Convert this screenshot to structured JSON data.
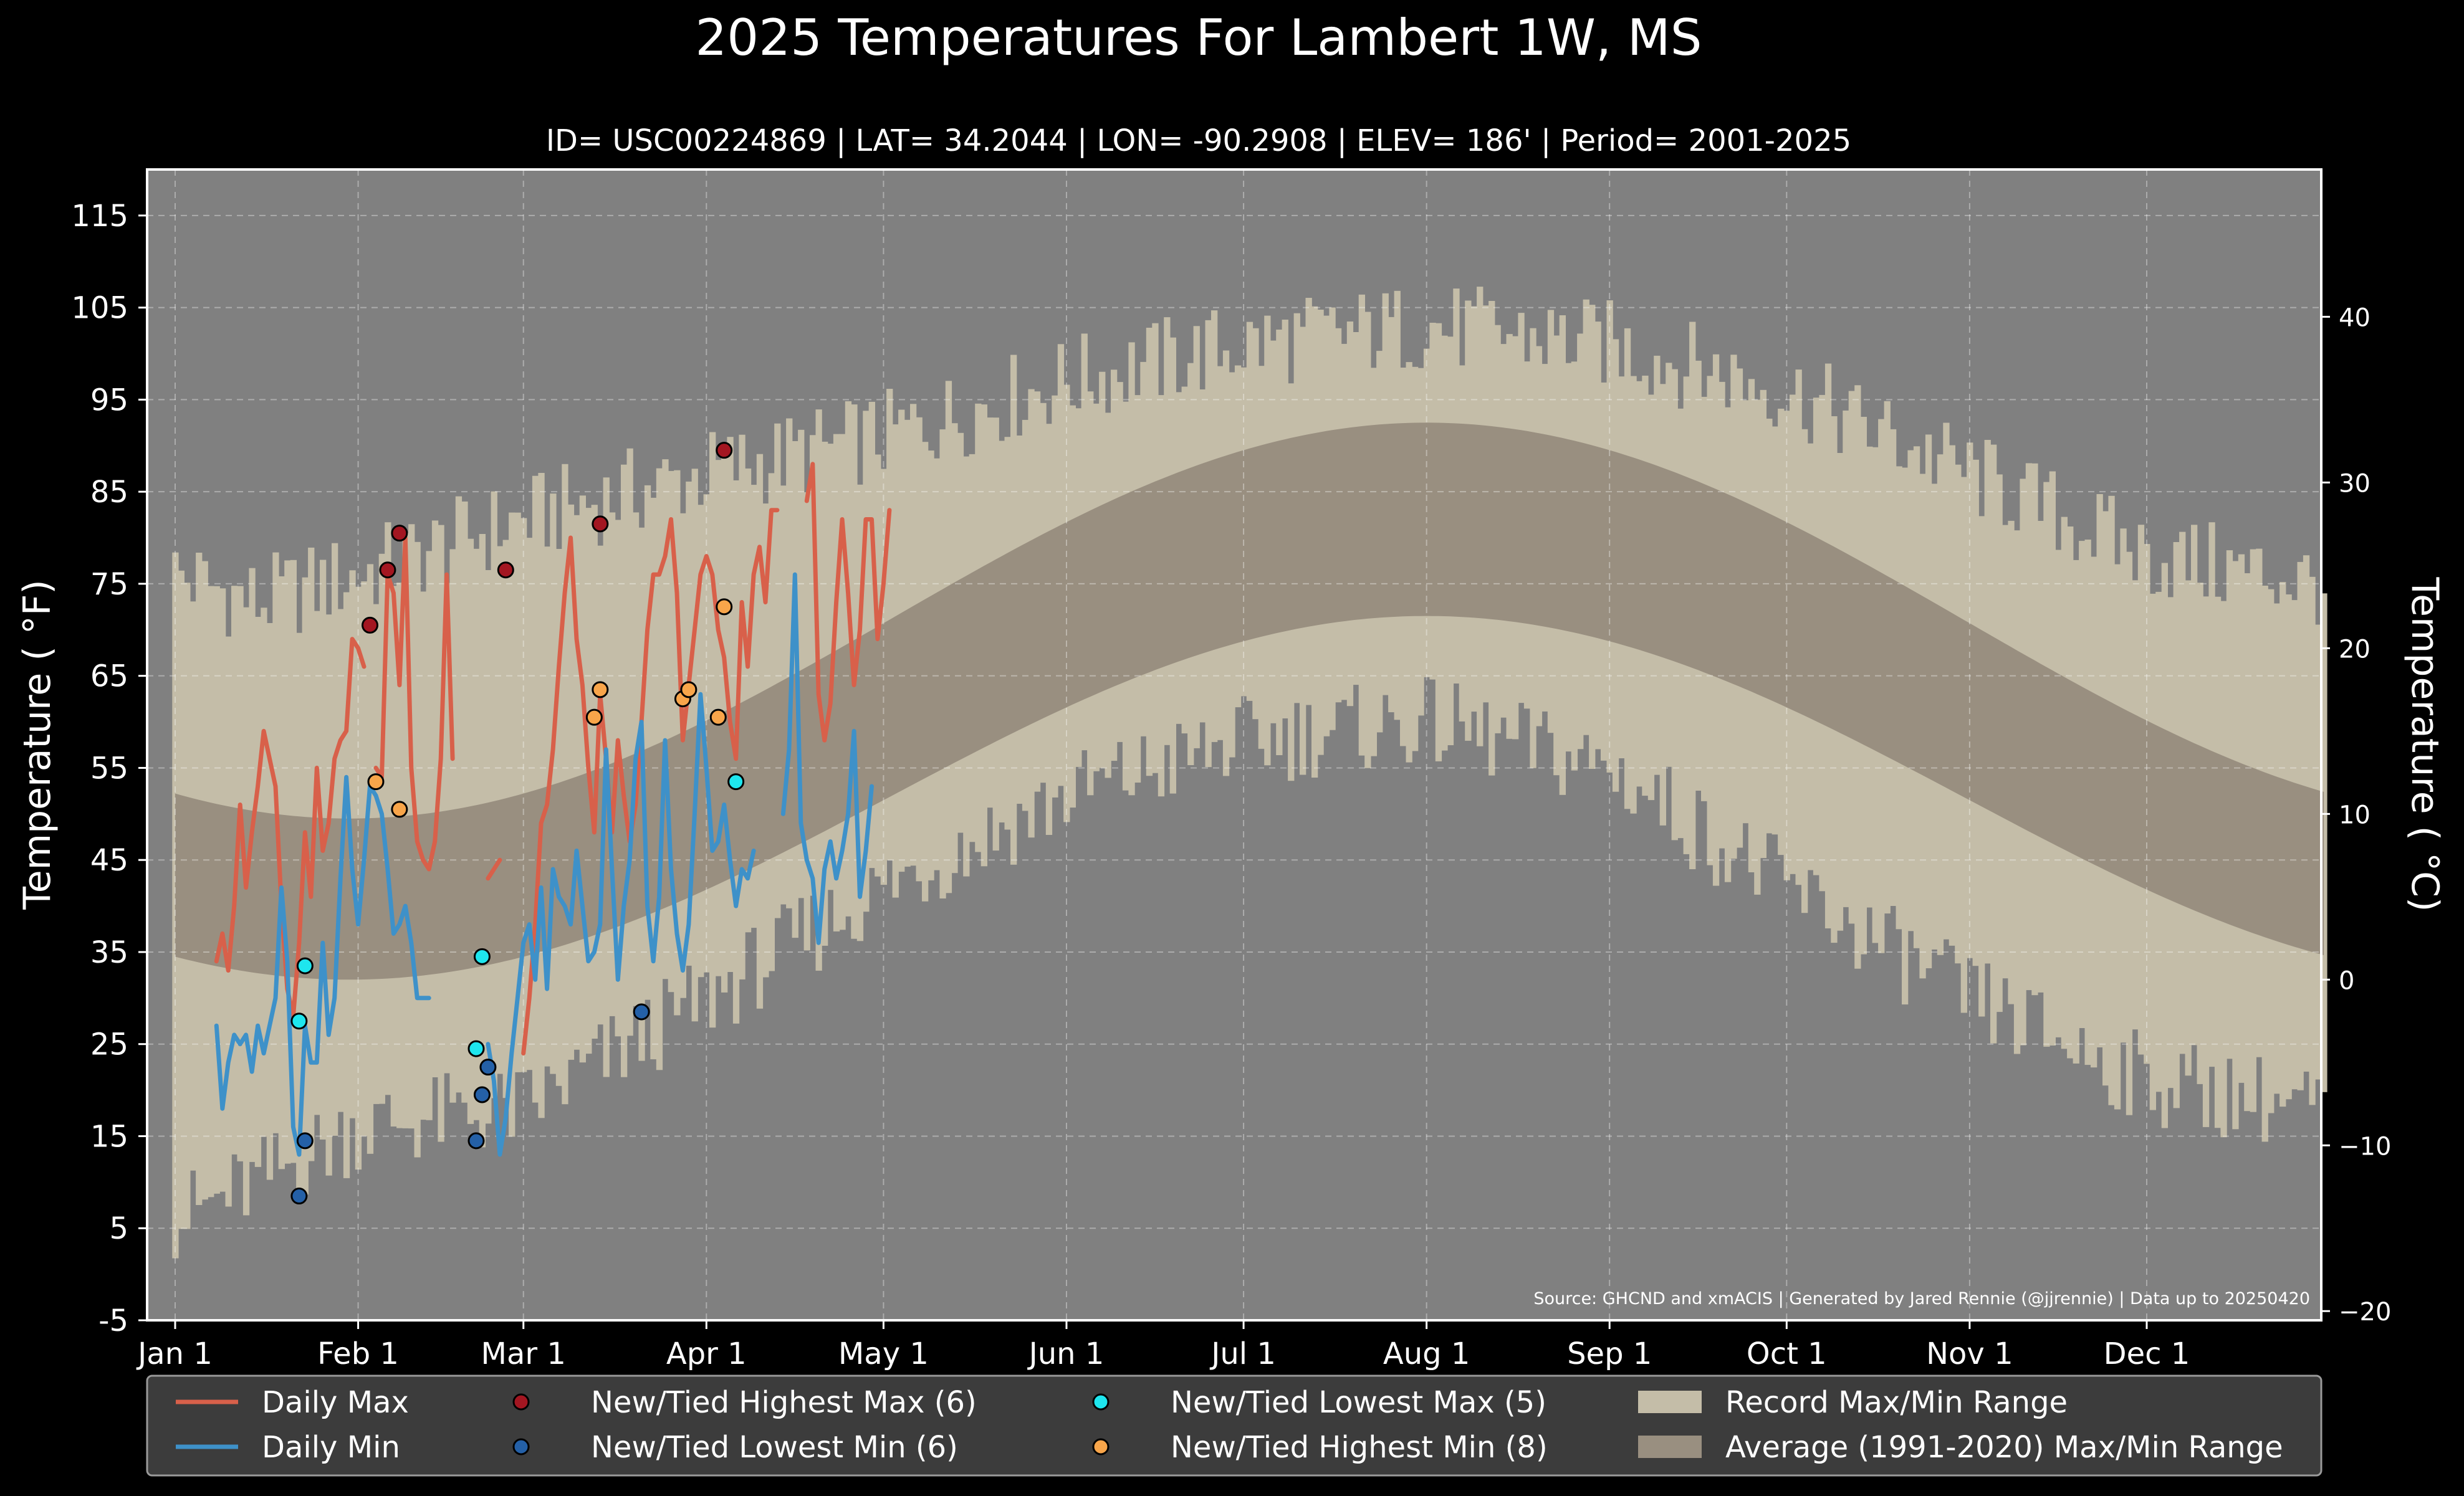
{
  "chart_data": {
    "type": "line",
    "title": "2025 Temperatures For Lambert 1W, MS",
    "subtitle": "ID= USC00224869 | LAT= 34.2044 | LON= -90.2908 | ELEV= 186' | Period= 2001-2025",
    "ylabel": "Temperature ($^\\circ$F)",
    "ylabel_display": "Temperature ( °F)",
    "y2label": "Temperature ( °C)",
    "source": "Source: GHCND and xmACIS | Generated by Jared Rennie (@jjrennie) | Data up to 20250420",
    "ylim": [
      -5,
      120
    ],
    "y_ticks": [
      "-5",
      "5",
      "15",
      "25",
      "35",
      "45",
      "55",
      "65",
      "75",
      "85",
      "95",
      "105",
      "115"
    ],
    "y2_ticks": [
      "−20",
      "−10",
      "0",
      "10",
      "20",
      "30",
      "40"
    ],
    "x_ticks": [
      {
        "label": "Jan 1",
        "day": 1
      },
      {
        "label": "Feb 1",
        "day": 32
      },
      {
        "label": "Mar 1",
        "day": 60
      },
      {
        "label": "Apr 1",
        "day": 91
      },
      {
        "label": "May 1",
        "day": 121
      },
      {
        "label": "Jun 1",
        "day": 152
      },
      {
        "label": "Jul 1",
        "day": 182
      },
      {
        "label": "Aug 1",
        "day": 213
      },
      {
        "label": "Sep 1",
        "day": 244
      },
      {
        "label": "Oct 1",
        "day": 274
      },
      {
        "label": "Nov 1",
        "day": 305
      },
      {
        "label": "Dec 1",
        "day": 335
      }
    ],
    "grid": true,
    "legend_position": "bottom",
    "colors": {
      "background": "#000000",
      "plot_bg": "#808080",
      "record_band": "#c4bda8",
      "normal_band": "#998f80",
      "daily_max": "#d8604a",
      "daily_min": "#3e91c9",
      "high_max": "#a31621",
      "low_min": "#2460a7",
      "low_max": "#1ee6ee",
      "high_min": "#f8a54a"
    },
    "normals": {
      "description": "Average (1991-2020) Max/Min Range",
      "max_winter": 49.5,
      "max_summer": 92.5,
      "min_winter": 32,
      "min_summer": 71.5,
      "peak_day": 213
    },
    "record_max_anchors": [
      {
        "day": 1,
        "value": 76
      },
      {
        "day": 15,
        "value": 73
      },
      {
        "day": 32,
        "value": 76
      },
      {
        "day": 60,
        "value": 82
      },
      {
        "day": 91,
        "value": 87
      },
      {
        "day": 121,
        "value": 91
      },
      {
        "day": 152,
        "value": 97
      },
      {
        "day": 182,
        "value": 101
      },
      {
        "day": 213,
        "value": 103
      },
      {
        "day": 244,
        "value": 101
      },
      {
        "day": 274,
        "value": 96
      },
      {
        "day": 305,
        "value": 87
      },
      {
        "day": 335,
        "value": 78
      },
      {
        "day": 365,
        "value": 75
      }
    ],
    "record_min_anchors": [
      {
        "day": 1,
        "value": 6
      },
      {
        "day": 15,
        "value": 10
      },
      {
        "day": 32,
        "value": 16
      },
      {
        "day": 60,
        "value": 18
      },
      {
        "day": 91,
        "value": 30
      },
      {
        "day": 121,
        "value": 42
      },
      {
        "day": 152,
        "value": 52
      },
      {
        "day": 182,
        "value": 58
      },
      {
        "day": 213,
        "value": 60
      },
      {
        "day": 244,
        "value": 55
      },
      {
        "day": 274,
        "value": 42
      },
      {
        "day": 305,
        "value": 30
      },
      {
        "day": 335,
        "value": 21
      },
      {
        "day": 365,
        "value": 18
      }
    ],
    "series": [
      {
        "name": "Daily Max",
        "start_day": 8,
        "values": [
          34,
          37,
          33,
          40,
          51,
          42,
          48,
          53,
          59,
          56,
          53,
          40,
          31,
          28,
          36,
          48,
          41,
          55,
          46,
          49,
          56,
          58,
          59,
          69,
          68,
          66,
          null,
          55,
          54,
          76,
          74,
          64,
          80,
          55,
          47,
          45,
          44,
          47,
          56,
          76,
          56,
          null,
          null,
          null,
          null,
          null,
          43,
          44,
          45,
          null,
          null,
          null,
          24,
          30,
          38,
          49,
          51,
          57,
          66,
          74,
          80,
          69,
          64,
          55,
          48,
          63,
          56,
          48,
          58,
          52,
          47,
          51,
          60,
          70,
          76,
          76,
          78,
          82,
          74,
          58,
          64,
          70,
          76,
          78,
          76,
          70,
          67,
          60,
          56,
          73,
          66,
          76,
          79,
          73,
          83,
          83,
          null,
          null,
          null,
          null,
          84,
          88,
          63,
          58,
          62,
          73,
          82,
          74,
          64,
          70,
          82,
          82,
          69,
          75,
          83
        ]
      },
      {
        "name": "Daily Min",
        "start_day": 8,
        "values": [
          27,
          18,
          23,
          26,
          25,
          26,
          22,
          27,
          24,
          27,
          30,
          42,
          34,
          16,
          13,
          27,
          23,
          23,
          36,
          26,
          30,
          43,
          54,
          44,
          38,
          45,
          53,
          52,
          50,
          44,
          37,
          38,
          40,
          36,
          30,
          30,
          30,
          null,
          null,
          null,
          null,
          null,
          null,
          null,
          null,
          null,
          25,
          21,
          13,
          17,
          24,
          30,
          36,
          38,
          32,
          42,
          31,
          44,
          41,
          40,
          38,
          46,
          40,
          34,
          35,
          38,
          57,
          44,
          32,
          40,
          45,
          56,
          60,
          40,
          34,
          41,
          58,
          44,
          37,
          33,
          38,
          50,
          63,
          55,
          46,
          47,
          51,
          45,
          40,
          44,
          43,
          46,
          null,
          null,
          null,
          null,
          50,
          57,
          76,
          49,
          45,
          43,
          36,
          44,
          47,
          43,
          46,
          50,
          59,
          41,
          46,
          53
        ]
      }
    ],
    "points": {
      "high_max": {
        "name": "New/Tied Highest Max (6)",
        "points": [
          {
            "day": 34,
            "value": 70.5
          },
          {
            "day": 37,
            "value": 76.5
          },
          {
            "day": 39,
            "value": 80.5
          },
          {
            "day": 57,
            "value": 76.5
          },
          {
            "day": 73,
            "value": 81.5
          },
          {
            "day": 94,
            "value": 89.5
          }
        ]
      },
      "low_min": {
        "name": "New/Tied Lowest Min (6)",
        "points": [
          {
            "day": 22,
            "value": 8.5
          },
          {
            "day": 23,
            "value": 14.5
          },
          {
            "day": 52,
            "value": 14.5
          },
          {
            "day": 53,
            "value": 19.5
          },
          {
            "day": 54,
            "value": 22.5
          },
          {
            "day": 80,
            "value": 28.5
          }
        ]
      },
      "low_max": {
        "name": "New/Tied Lowest Max (5)",
        "points": [
          {
            "day": 22,
            "value": 27.5
          },
          {
            "day": 23,
            "value": 33.5
          },
          {
            "day": 52,
            "value": 24.5
          },
          {
            "day": 53,
            "value": 34.5
          },
          {
            "day": 96,
            "value": 53.5
          }
        ]
      },
      "high_min": {
        "name": "New/Tied Highest Min (8)",
        "points": [
          {
            "day": 35,
            "value": 53.5
          },
          {
            "day": 39,
            "value": 50.5
          },
          {
            "day": 72,
            "value": 60.5
          },
          {
            "day": 73,
            "value": 63.5
          },
          {
            "day": 87,
            "value": 62.5
          },
          {
            "day": 88,
            "value": 63.5
          },
          {
            "day": 93,
            "value": 60.5
          },
          {
            "day": 94,
            "value": 72.5
          }
        ]
      }
    },
    "legend": [
      {
        "label": "Daily Max",
        "kind": "line",
        "color": "#d8604a"
      },
      {
        "label": "Daily Min",
        "kind": "line",
        "color": "#3e91c9"
      },
      {
        "label": "New/Tied Highest Max (6)",
        "kind": "dot",
        "color": "#a31621"
      },
      {
        "label": "New/Tied Lowest Min (6)",
        "kind": "dot",
        "color": "#2460a7"
      },
      {
        "label": "New/Tied Lowest Max (5)",
        "kind": "dot",
        "color": "#1ee6ee"
      },
      {
        "label": "New/Tied Highest Min (8)",
        "kind": "dot",
        "color": "#f8a54a"
      },
      {
        "label": "Record Max/Min Range",
        "kind": "patch",
        "color": "#c4bda8"
      },
      {
        "label": "Average (1991-2020) Max/Min Range",
        "kind": "patch",
        "color": "#998f80"
      }
    ]
  }
}
